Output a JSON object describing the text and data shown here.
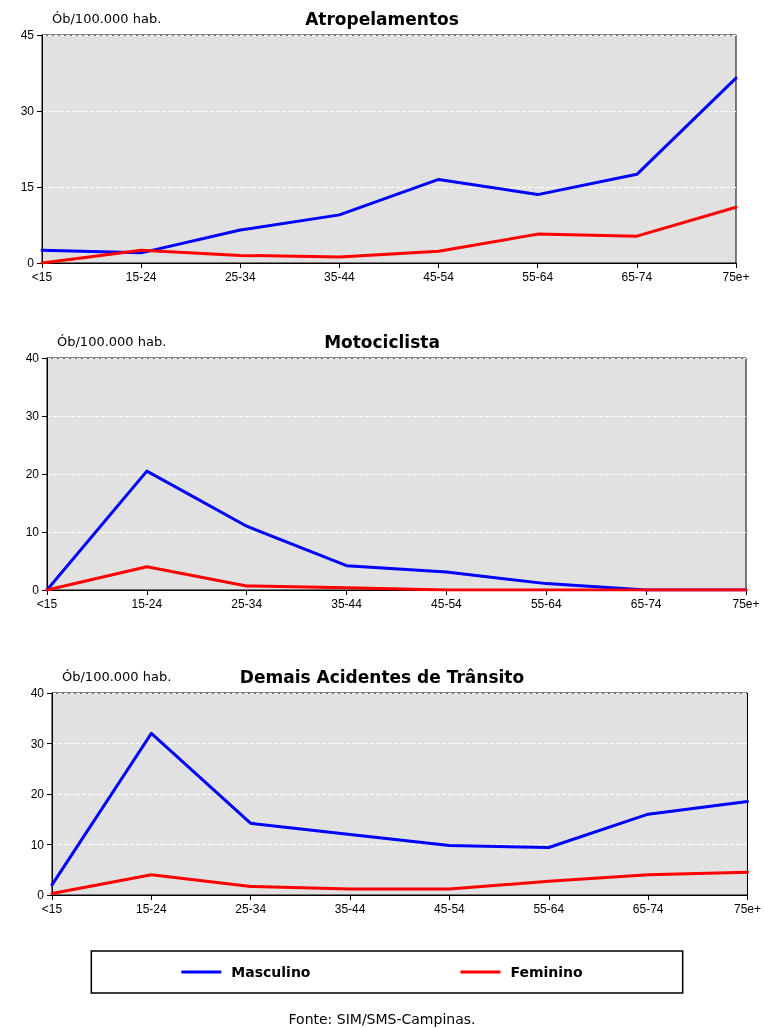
{
  "chart_data": [
    {
      "type": "line",
      "title": "Atropelamentos",
      "ylabel": "Ób/100.000 hab.",
      "categories": [
        "<15",
        "15-24",
        "25-34",
        "35-44",
        "45-54",
        "55-64",
        "65-74",
        "75e+"
      ],
      "ylim": [
        0,
        45
      ],
      "yticks": [
        0,
        15,
        30,
        45
      ],
      "grid": "y",
      "legend": false,
      "marker": "none",
      "line_style": "solid",
      "series": [
        {
          "color": "#0000ff",
          "values": [
            2.5,
            2,
            6.5,
            9.5,
            16.5,
            13.5,
            17.5,
            36.5
          ]
        },
        {
          "color": "#ff0000",
          "values": [
            0,
            2.5,
            1.5,
            1.2,
            2.3,
            5.7,
            5.3,
            11
          ]
        }
      ]
    },
    {
      "type": "line",
      "title": "Motociclista",
      "ylabel": "Ób/100.000 hab.",
      "categories": [
        "<15",
        "15-24",
        "25-34",
        "35-44",
        "45-54",
        "55-64",
        "65-74",
        "75e+"
      ],
      "ylim": [
        0,
        40
      ],
      "yticks": [
        0,
        10,
        20,
        30,
        40
      ],
      "grid": "y",
      "legend": false,
      "marker": "none",
      "line_style": "solid",
      "series": [
        {
          "color": "#0000ff",
          "values": [
            0,
            20.5,
            11,
            4.2,
            3.1,
            1.1,
            0,
            0
          ]
        },
        {
          "color": "#ff0000",
          "values": [
            0,
            4,
            0.7,
            0.4,
            0,
            0,
            0,
            0
          ]
        }
      ]
    },
    {
      "type": "line",
      "title": "Demais Acidentes de Trânsito",
      "ylabel": "Ób/100.000 hab.",
      "categories": [
        "<15",
        "15-24",
        "25-34",
        "35-44",
        "45-54",
        "55-64",
        "65-74",
        "75e+"
      ],
      "ylim": [
        0,
        40
      ],
      "yticks": [
        0,
        10,
        20,
        30,
        40
      ],
      "grid": "y",
      "legend": "bottom",
      "marker": "none",
      "line_style": "solid",
      "annotations": [
        "Fonte: SIM/SMS-Campinas."
      ],
      "series": [
        {
          "name": "Masculino",
          "color": "#0000ff",
          "values": [
            2,
            32,
            14.2,
            12,
            9.8,
            9.4,
            16,
            18.5
          ]
        },
        {
          "name": "Feminino",
          "color": "#ff0000",
          "values": [
            0.3,
            4,
            1.7,
            1.2,
            1.2,
            2.7,
            4,
            4.5
          ]
        }
      ]
    }
  ]
}
